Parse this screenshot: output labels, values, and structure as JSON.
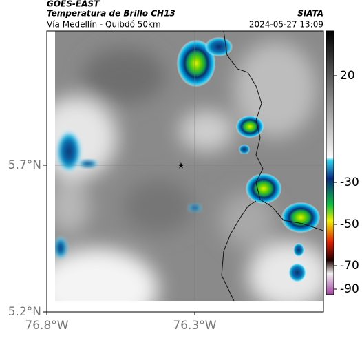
{
  "header": {
    "source": "GOES-EAST",
    "title": "Temperatura de Brillo CH13",
    "credit": "SIATA",
    "subtitle": "Vía Medellín - Quibdó 50km",
    "timestamp": "2024-05-27 13:09"
  },
  "axes": {
    "x_ticks": [
      "76.8°W",
      "76.3°W"
    ],
    "y_ticks": [
      "5.7°N",
      "5.2°N"
    ]
  },
  "colorbar": {
    "ticks": [
      20,
      -30,
      -50,
      -70,
      -90
    ]
  }
}
